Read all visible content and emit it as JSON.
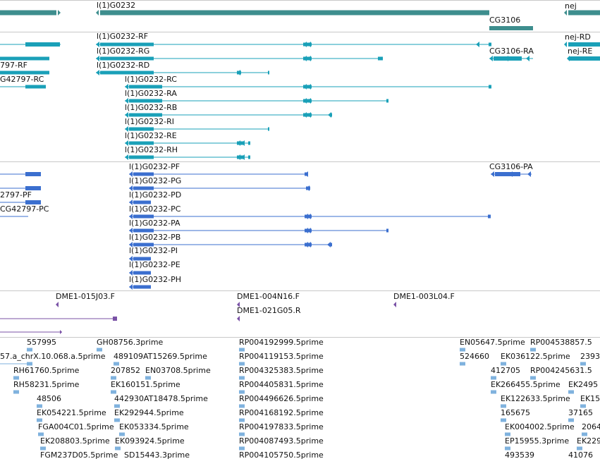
{
  "colors": {
    "gene": "#3e8e8e",
    "transcript": "#1aa0b8",
    "protein": "#3b6fcf",
    "clone": "#7a52a6",
    "est": "#7fb2de"
  },
  "gene_track": {
    "labels": [
      {
        "id": "g1",
        "text": "l(1)G0232"
      },
      {
        "id": "g2",
        "text": "nej"
      },
      {
        "id": "g3",
        "text": "CG3106"
      }
    ]
  },
  "transcript_track": {
    "labels": [
      {
        "id": "t1",
        "text": "l(1)G0232-RF"
      },
      {
        "id": "t2",
        "text": "l(1)G0232-RG"
      },
      {
        "id": "t3",
        "text": "l(1)G0232-RD"
      },
      {
        "id": "t4",
        "text": "l(1)G0232-RC"
      },
      {
        "id": "t5",
        "text": "l(1)G0232-RA"
      },
      {
        "id": "t6",
        "text": "l(1)G0232-RB"
      },
      {
        "id": "t7",
        "text": "l(1)G0232-RI"
      },
      {
        "id": "t8",
        "text": "l(1)G0232-RE"
      },
      {
        "id": "t9",
        "text": "l(1)G0232-RH"
      },
      {
        "id": "t10",
        "text": "nej-RD"
      },
      {
        "id": "t11",
        "text": "nej-RE"
      },
      {
        "id": "t12",
        "text": "CG3106-RA"
      },
      {
        "id": "t13",
        "text": "797-RF"
      },
      {
        "id": "t14",
        "text": "G42797-RC"
      }
    ]
  },
  "protein_track": {
    "labels": [
      {
        "id": "p1",
        "text": "l(1)G0232-PF"
      },
      {
        "id": "p2",
        "text": "l(1)G0232-PG"
      },
      {
        "id": "p3",
        "text": "l(1)G0232-PD"
      },
      {
        "id": "p4",
        "text": "l(1)G0232-PC"
      },
      {
        "id": "p5",
        "text": "l(1)G0232-PA"
      },
      {
        "id": "p6",
        "text": "l(1)G0232-PB"
      },
      {
        "id": "p7",
        "text": "l(1)G0232-PI"
      },
      {
        "id": "p8",
        "text": "l(1)G0232-PE"
      },
      {
        "id": "p9",
        "text": "l(1)G0232-PH"
      },
      {
        "id": "p10",
        "text": "CG3106-PA"
      },
      {
        "id": "p11",
        "text": "2797-PF"
      },
      {
        "id": "p12",
        "text": "CG42797-PC"
      }
    ]
  },
  "clone_track": {
    "labels": [
      {
        "id": "c1",
        "text": "DME1-015J03.F"
      },
      {
        "id": "c2",
        "text": "DME1-004N16.F"
      },
      {
        "id": "c3",
        "text": "DME1-021G05.R"
      },
      {
        "id": "c4",
        "text": "DME1-003L04.F"
      }
    ]
  },
  "est_track": {
    "labels": [
      {
        "id": "e1",
        "text": "557995"
      },
      {
        "id": "e2",
        "text": "GH08756.3prime"
      },
      {
        "id": "e3",
        "text": "RP004192999.5prime"
      },
      {
        "id": "e4",
        "text": "EN05647.5prime"
      },
      {
        "id": "e5",
        "text": "RP004538857.5"
      },
      {
        "id": "e6",
        "text": "57.a_chrX.10.068.a.5prime"
      },
      {
        "id": "e7",
        "text": "489109AT15269.5prime"
      },
      {
        "id": "e8",
        "text": "RP004119153.5prime"
      },
      {
        "id": "e9",
        "text": "524660"
      },
      {
        "id": "e10",
        "text": "EK036122.5prime"
      },
      {
        "id": "e11",
        "text": "2393"
      },
      {
        "id": "e12",
        "text": "RH61760.5prime"
      },
      {
        "id": "e13",
        "text": "207852"
      },
      {
        "id": "e14",
        "text": "EN03708.5prime"
      },
      {
        "id": "e15",
        "text": "RP004325383.5prime"
      },
      {
        "id": "e16",
        "text": "412705"
      },
      {
        "id": "e17",
        "text": "RP004245631.5"
      },
      {
        "id": "e18",
        "text": "RH58231.5prime"
      },
      {
        "id": "e19",
        "text": "EK160151.5prime"
      },
      {
        "id": "e20",
        "text": "RP004405831.5prime"
      },
      {
        "id": "e21",
        "text": "EK266455.5prime"
      },
      {
        "id": "e22",
        "text": "EK2495"
      },
      {
        "id": "e23",
        "text": "48506"
      },
      {
        "id": "e24",
        "text": "442930AT18478.5prime"
      },
      {
        "id": "e25",
        "text": "RP004496626.5prime"
      },
      {
        "id": "e26",
        "text": "EK122633.5prime"
      },
      {
        "id": "e27",
        "text": "EK15"
      },
      {
        "id": "e28",
        "text": "EK054221.5prime"
      },
      {
        "id": "e29",
        "text": "EK292944.5prime"
      },
      {
        "id": "e30",
        "text": "RP004168192.5prime"
      },
      {
        "id": "e31",
        "text": "165675"
      },
      {
        "id": "e32",
        "text": "37165"
      },
      {
        "id": "e33",
        "text": "FGA004C01.5prime"
      },
      {
        "id": "e34",
        "text": "EK053334.5prime"
      },
      {
        "id": "e35",
        "text": "RP004197833.5prime"
      },
      {
        "id": "e36",
        "text": "EK004002.5prime"
      },
      {
        "id": "e37",
        "text": "2064"
      },
      {
        "id": "e38",
        "text": "EK208803.5prime"
      },
      {
        "id": "e39",
        "text": "EK093924.5prime"
      },
      {
        "id": "e40",
        "text": "RP004087493.5prime"
      },
      {
        "id": "e41",
        "text": "EP15955.3prime"
      },
      {
        "id": "e42",
        "text": "EK229"
      },
      {
        "id": "e43",
        "text": "FGM237D05.5prime"
      },
      {
        "id": "e44",
        "text": "SD15443.3prime"
      },
      {
        "id": "e45",
        "text": "RP004105750.5prime"
      },
      {
        "id": "e46",
        "text": "493539"
      },
      {
        "id": "e47",
        "text": "41076"
      }
    ]
  }
}
